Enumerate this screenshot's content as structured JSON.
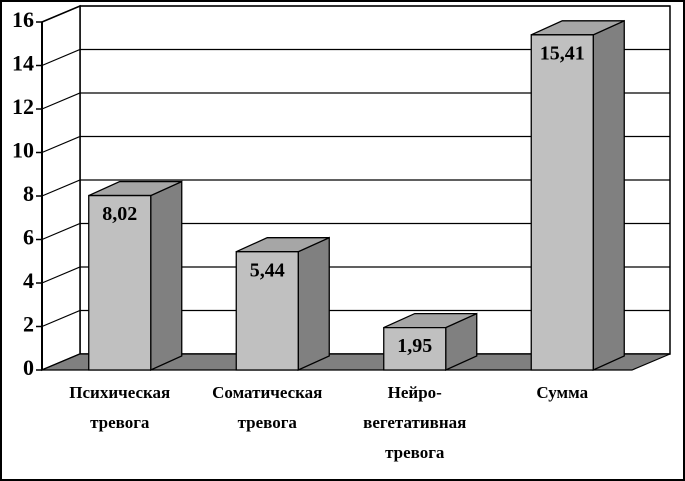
{
  "chart_data": {
    "type": "bar3d",
    "categories": [
      "Психическая\nтревога",
      "Соматическая\nтревога",
      "Нейро-\nвегетативная\nтревога",
      "Сумма"
    ],
    "values": [
      8.02,
      5.44,
      1.95,
      15.41
    ],
    "value_labels": [
      "8,02",
      "5,44",
      "1,95",
      "15,41"
    ],
    "color": "#c0c0c0",
    "ylim": [
      0,
      16
    ],
    "yticks": [
      0,
      2,
      4,
      6,
      8,
      10,
      12,
      14,
      16
    ],
    "grid": true
  }
}
